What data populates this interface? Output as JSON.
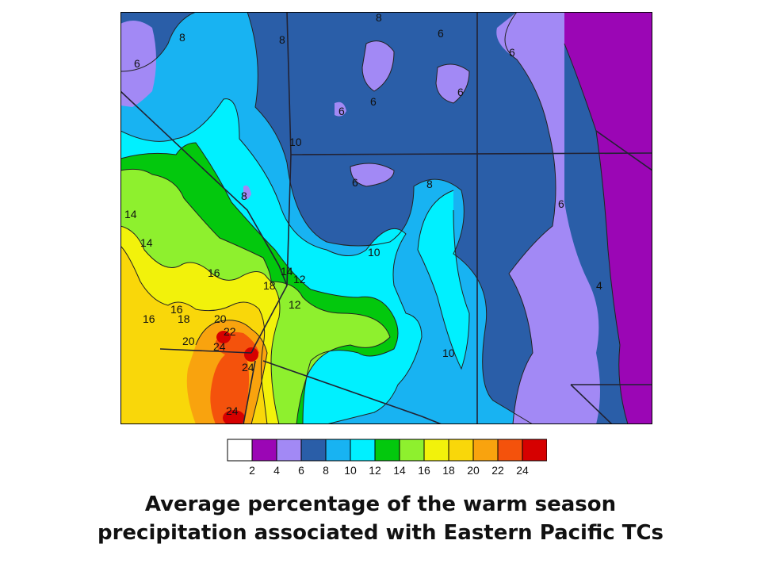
{
  "caption": {
    "line1": "Average percentage of the warm season",
    "line2": "precipitation associated with Eastern Pacific TCs"
  },
  "legend": {
    "colors": [
      "#ffffff",
      "#9b06b5",
      "#a289f5",
      "#2a5ea8",
      "#18b3f2",
      "#00f0ff",
      "#03c80d",
      "#8ef02e",
      "#f2f20b",
      "#f9d70a",
      "#f9a30e",
      "#f4520c",
      "#d60000"
    ],
    "ticks": [
      "2",
      "4",
      "6",
      "8",
      "10",
      "12",
      "14",
      "16",
      "18",
      "20",
      "22",
      "24"
    ]
  },
  "map": {
    "contour_labels": [
      "8",
      "8",
      "6",
      "6",
      "8",
      "6",
      "6",
      "6",
      "6",
      "10",
      "6",
      "8",
      "8",
      "6",
      "14",
      "14",
      "10",
      "16",
      "14",
      "12",
      "18",
      "12",
      "4",
      "16",
      "16",
      "18",
      "20",
      "22",
      "20",
      "24",
      "10",
      "24",
      "24"
    ]
  }
}
